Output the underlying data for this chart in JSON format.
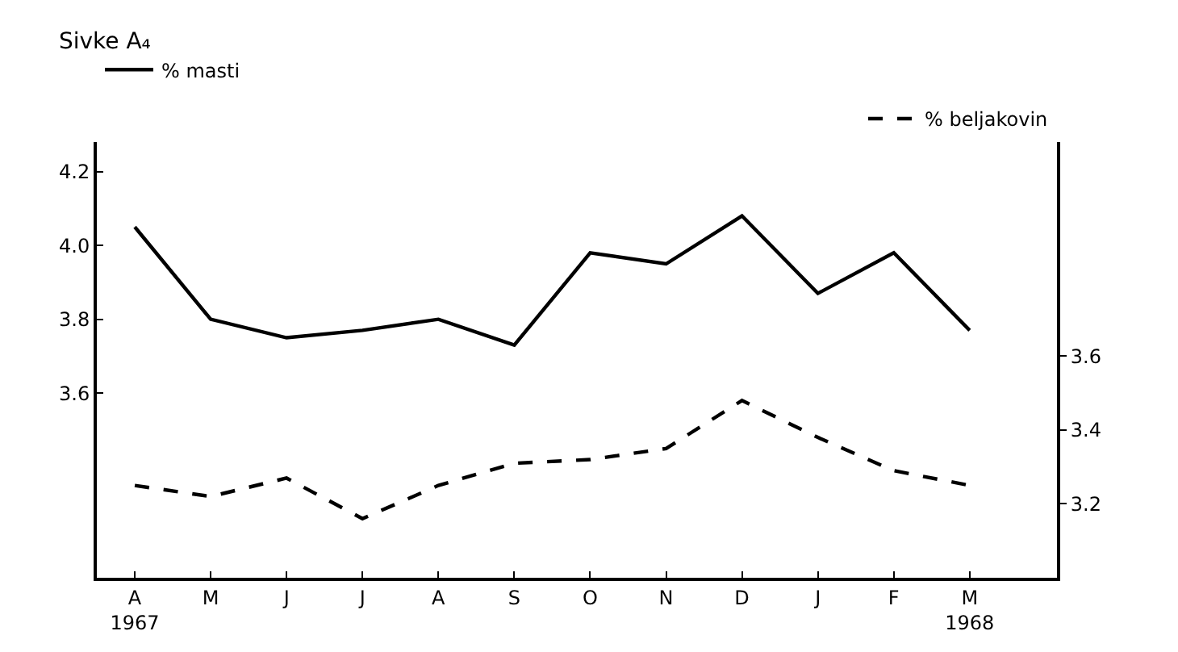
{
  "chart_data": {
    "type": "line",
    "title": "Sivke A₄",
    "categories": [
      "A\n1967",
      "M",
      "J",
      "J",
      "A",
      "S",
      "O",
      "N",
      "D",
      "J",
      "F",
      "M\n1968"
    ],
    "series": [
      {
        "name": "% masti",
        "color": "#000000",
        "line_style": "solid",
        "values": [
          4.05,
          3.8,
          3.75,
          3.77,
          3.8,
          3.73,
          3.98,
          3.95,
          4.08,
          3.87,
          3.98,
          3.77
        ]
      },
      {
        "name": "% beljakovin",
        "color": "#000000",
        "line_style": "dashed",
        "axis": "y2",
        "values": [
          3.25,
          3.22,
          3.27,
          3.16,
          3.25,
          3.31,
          3.32,
          3.35,
          3.48,
          3.38,
          3.29,
          3.25
        ]
      }
    ],
    "ylim": [
      3.1,
      4.28
    ],
    "yticks": [
      3.6,
      3.8,
      {
        "value": 4.0,
        "label": "4.0"
      },
      4.2
    ],
    "y2lim": [
      3.0,
      4.18
    ],
    "y2ticks": [
      3.2,
      3.4,
      3.6
    ],
    "legend": "top",
    "marker": "none"
  }
}
